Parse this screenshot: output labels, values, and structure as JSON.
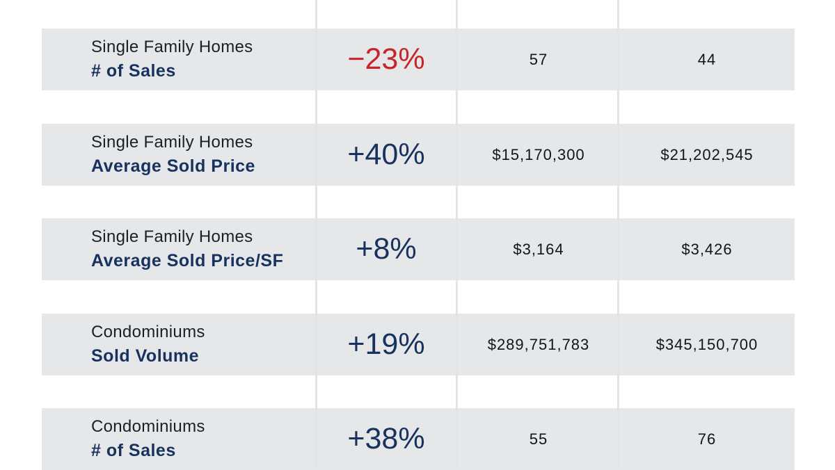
{
  "colors": {
    "row_background": "#e6e7e8",
    "metric_text": "#17325f",
    "positive_change": "#17325f",
    "negative_change": "#c8242b",
    "divider": "#e3e4e5"
  },
  "rows": [
    {
      "category": "Single Family Homes",
      "metric": "# of Sales",
      "change": "−23%",
      "direction": "down",
      "value_1": "57",
      "value_2": "44"
    },
    {
      "category": "Single Family Homes",
      "metric": "Average Sold Price",
      "change": "+40%",
      "direction": "up",
      "value_1": "$15,170,300",
      "value_2": "$21,202,545"
    },
    {
      "category": "Single Family Homes",
      "metric": "Average Sold Price/SF",
      "change": "+8%",
      "direction": "up",
      "value_1": "$3,164",
      "value_2": "$3,426"
    },
    {
      "category": "Condominiums",
      "metric": "Sold Volume",
      "change": "+19%",
      "direction": "up",
      "value_1": "$289,751,783",
      "value_2": "$345,150,700"
    },
    {
      "category": "Condominiums",
      "metric": "# of Sales",
      "change": "+38%",
      "direction": "up",
      "value_1": "55",
      "value_2": "76"
    }
  ]
}
